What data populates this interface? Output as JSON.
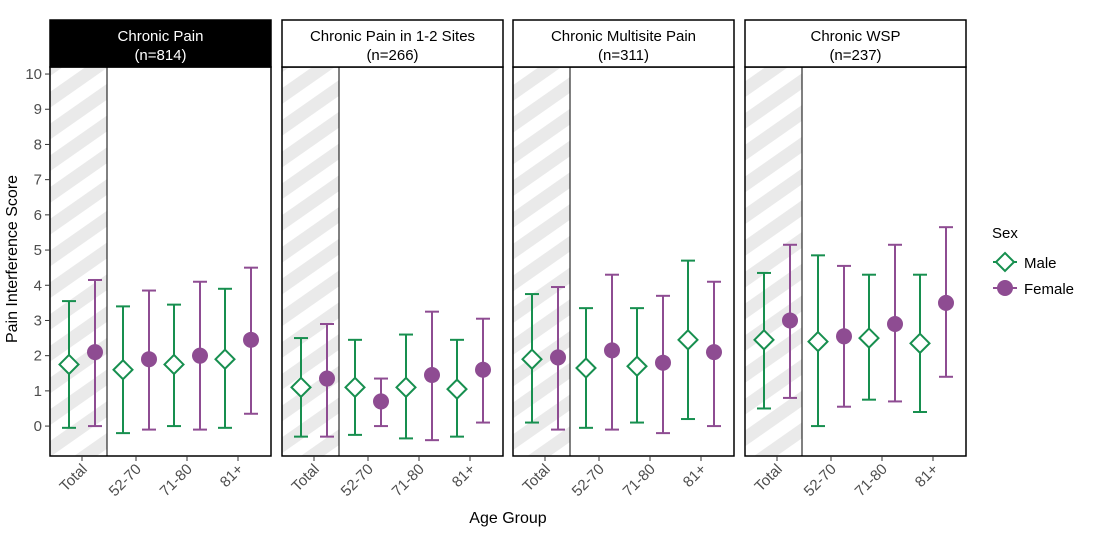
{
  "chart_data": {
    "type": "scatter",
    "subtype": "point-range faceted",
    "xlabel": "Age Group",
    "ylabel": "Pain Interference Score",
    "ylim": [
      -0.85,
      10.2
    ],
    "yticks": [
      "0",
      "1",
      "2",
      "3",
      "4",
      "5",
      "6",
      "7",
      "8",
      "9",
      "10"
    ],
    "categories": [
      "Total",
      "52-70",
      "71-80",
      "81+"
    ],
    "legend": {
      "title": "Sex",
      "position": "right",
      "items": [
        {
          "name": "Male",
          "color": "#178F4F",
          "shape": "open-diamond"
        },
        {
          "name": "Female",
          "color": "#8E4C92",
          "shape": "filled-circle"
        }
      ]
    },
    "grid": false,
    "panels": [
      {
        "title_line1": "Chronic Pain",
        "title_line2": "(n=814)",
        "highlighted": true,
        "series": [
          {
            "name": "Male",
            "values": [
              1.75,
              1.6,
              1.75,
              1.9
            ],
            "lower": [
              -0.05,
              -0.2,
              0.0,
              -0.05
            ],
            "upper": [
              3.55,
              3.4,
              3.45,
              3.9
            ]
          },
          {
            "name": "Female",
            "values": [
              2.1,
              1.9,
              2.0,
              2.45
            ],
            "lower": [
              0.0,
              -0.1,
              -0.1,
              0.35
            ],
            "upper": [
              4.15,
              3.85,
              4.1,
              4.5
            ]
          }
        ]
      },
      {
        "title_line1": "Chronic Pain in 1-2 Sites",
        "title_line2": "(n=266)",
        "highlighted": false,
        "series": [
          {
            "name": "Male",
            "values": [
              1.1,
              1.1,
              1.1,
              1.05
            ],
            "lower": [
              -0.3,
              -0.25,
              -0.35,
              -0.3
            ],
            "upper": [
              2.5,
              2.45,
              2.6,
              2.45
            ]
          },
          {
            "name": "Female",
            "values": [
              1.35,
              0.7,
              1.45,
              1.6
            ],
            "lower": [
              -0.3,
              0.0,
              -0.4,
              0.1
            ],
            "upper": [
              2.9,
              1.35,
              3.25,
              3.05
            ]
          }
        ]
      },
      {
        "title_line1": "Chronic Multisite Pain",
        "title_line2": "(n=311)",
        "highlighted": false,
        "series": [
          {
            "name": "Male",
            "values": [
              1.9,
              1.65,
              1.7,
              2.45
            ],
            "lower": [
              0.1,
              -0.05,
              0.1,
              0.2
            ],
            "upper": [
              3.75,
              3.35,
              3.35,
              4.7
            ]
          },
          {
            "name": "Female",
            "values": [
              1.95,
              2.15,
              1.8,
              2.1
            ],
            "lower": [
              -0.1,
              -0.1,
              -0.2,
              0.0
            ],
            "upper": [
              3.95,
              4.3,
              3.7,
              4.1
            ]
          }
        ]
      },
      {
        "title_line1": "Chronic WSP",
        "title_line2": "(n=237)",
        "highlighted": false,
        "series": [
          {
            "name": "Male",
            "values": [
              2.45,
              2.4,
              2.5,
              2.35
            ],
            "lower": [
              0.5,
              0.0,
              0.75,
              0.4
            ],
            "upper": [
              4.35,
              4.85,
              4.3,
              4.3
            ]
          },
          {
            "name": "Female",
            "values": [
              3.0,
              2.55,
              2.9,
              3.5
            ],
            "lower": [
              0.8,
              0.55,
              0.7,
              1.4
            ],
            "upper": [
              5.15,
              4.55,
              5.15,
              5.65
            ]
          }
        ]
      }
    ]
  }
}
